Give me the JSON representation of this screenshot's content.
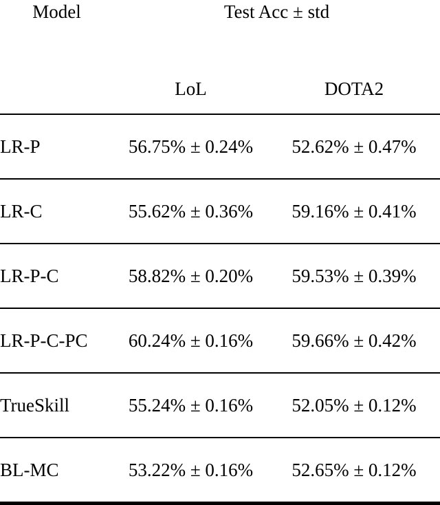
{
  "table": {
    "header": {
      "model_label": "Model",
      "group_label": "Test Acc ± std",
      "columns": [
        "LoL",
        "DOTA2"
      ]
    },
    "rows": [
      {
        "model": "LR-P",
        "lol": "56.75% ± 0.24%",
        "dota2": "52.62% ± 0.47%"
      },
      {
        "model": "LR-C",
        "lol": "55.62% ± 0.36%",
        "dota2": "59.16% ± 0.41%"
      },
      {
        "model": "LR-P-C",
        "lol": "58.82% ± 0.20%",
        "dota2": "59.53% ± 0.39%"
      },
      {
        "model": "LR-P-C-PC",
        "lol": "60.24% ± 0.16%",
        "dota2": "59.66% ± 0.42%"
      },
      {
        "model": "TrueSkill",
        "lol": "55.24% ± 0.16%",
        "dota2": "52.05% ± 0.12%"
      },
      {
        "model": "BL-MC",
        "lol": "53.22% ± 0.16%",
        "dota2": "52.65% ± 0.12%"
      }
    ]
  },
  "colors": {
    "background": "#ffffff",
    "text": "#000000",
    "rule": "#000000"
  }
}
